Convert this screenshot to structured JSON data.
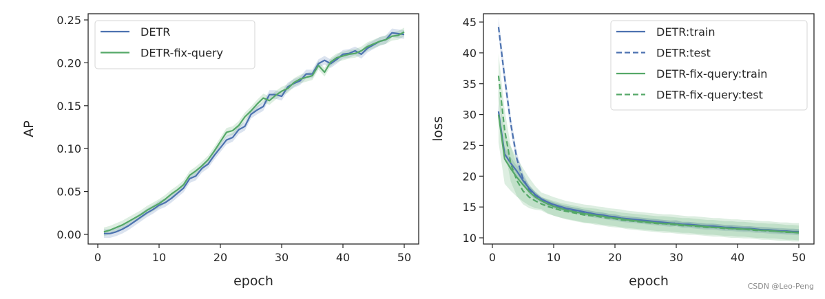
{
  "colors": {
    "detr": "#4c72b0",
    "fix": "#55a868",
    "detr_band": "#4c72b0",
    "fix_band": "#55a868"
  },
  "watermark": "CSDN @Leo-Peng",
  "chart_data": [
    {
      "type": "line",
      "title": "",
      "xlabel": "epoch",
      "ylabel": "AP",
      "xlim": [
        -1,
        52.5
      ],
      "ylim": [
        -0.01,
        0.26
      ],
      "xticks": [
        0,
        10,
        20,
        30,
        40,
        50
      ],
      "xtick_labels": [
        "0",
        "10",
        "20",
        "30",
        "40",
        "50"
      ],
      "yticks": [
        0.0,
        0.05,
        0.1,
        0.15,
        0.2,
        0.25
      ],
      "ytick_labels": [
        "0.00",
        "0.05",
        "0.10",
        "0.15",
        "0.20",
        "0.25"
      ],
      "grid": false,
      "legend_position": "upper left",
      "x": [
        1,
        2,
        3,
        4,
        5,
        6,
        7,
        8,
        9,
        10,
        11,
        12,
        13,
        14,
        15,
        16,
        17,
        18,
        19,
        20,
        21,
        22,
        23,
        24,
        25,
        26,
        27,
        28,
        29,
        30,
        31,
        32,
        33,
        34,
        35,
        36,
        37,
        38,
        39,
        40,
        41,
        42,
        43,
        44,
        45,
        46,
        47,
        48,
        49,
        50
      ],
      "series": [
        {
          "name": "DETR",
          "style": "solid",
          "color": "#4c72b0",
          "values": [
            0.001,
            0.001,
            0.003,
            0.006,
            0.01,
            0.015,
            0.02,
            0.025,
            0.029,
            0.034,
            0.037,
            0.042,
            0.048,
            0.054,
            0.065,
            0.068,
            0.077,
            0.082,
            0.092,
            0.101,
            0.11,
            0.113,
            0.122,
            0.126,
            0.14,
            0.145,
            0.149,
            0.163,
            0.163,
            0.161,
            0.172,
            0.176,
            0.179,
            0.187,
            0.187,
            0.199,
            0.203,
            0.199,
            0.204,
            0.21,
            0.211,
            0.214,
            0.21,
            0.217,
            0.221,
            0.225,
            0.227,
            0.235,
            0.234,
            0.233
          ],
          "band": 0.005
        },
        {
          "name": "DETR-fix-query",
          "style": "solid",
          "color": "#55a868",
          "values": [
            0.003,
            0.005,
            0.008,
            0.011,
            0.015,
            0.019,
            0.023,
            0.028,
            0.032,
            0.036,
            0.041,
            0.047,
            0.052,
            0.058,
            0.069,
            0.074,
            0.08,
            0.087,
            0.097,
            0.108,
            0.119,
            0.121,
            0.127,
            0.137,
            0.144,
            0.152,
            0.159,
            0.156,
            0.162,
            0.167,
            0.17,
            0.177,
            0.181,
            0.183,
            0.185,
            0.197,
            0.189,
            0.201,
            0.206,
            0.208,
            0.21,
            0.211,
            0.214,
            0.219,
            0.222,
            0.225,
            0.227,
            0.231,
            0.232,
            0.236
          ],
          "band": 0.005
        }
      ]
    },
    {
      "type": "line",
      "title": "",
      "xlabel": "epoch",
      "ylabel": "loss",
      "xlim": [
        -1.5,
        52.5
      ],
      "ylim": [
        9,
        46.5
      ],
      "xticks": [
        0,
        10,
        20,
        30,
        40,
        50
      ],
      "xtick_labels": [
        "0",
        "10",
        "20",
        "30",
        "40",
        "50"
      ],
      "yticks": [
        10,
        15,
        20,
        25,
        30,
        35,
        40,
        45
      ],
      "ytick_labels": [
        "10",
        "15",
        "20",
        "25",
        "30",
        "35",
        "40",
        "45"
      ],
      "grid": false,
      "legend_position": "upper right",
      "x": [
        1,
        2,
        3,
        4,
        5,
        6,
        7,
        8,
        9,
        10,
        11,
        12,
        13,
        14,
        15,
        16,
        17,
        18,
        19,
        20,
        21,
        22,
        23,
        24,
        25,
        26,
        27,
        28,
        29,
        30,
        31,
        32,
        33,
        34,
        35,
        36,
        37,
        38,
        39,
        40,
        41,
        42,
        43,
        44,
        45,
        46,
        47,
        48,
        49,
        50
      ],
      "series": [
        {
          "name": "DETR:train",
          "style": "solid",
          "color": "#4c72b0",
          "values": [
            30.5,
            23.6,
            22.1,
            20.8,
            19.3,
            18.0,
            17.0,
            16.3,
            15.8,
            15.4,
            15.1,
            14.8,
            14.6,
            14.4,
            14.2,
            14.0,
            13.8,
            13.7,
            13.5,
            13.4,
            13.2,
            13.1,
            13.0,
            12.9,
            12.8,
            12.7,
            12.6,
            12.5,
            12.4,
            12.3,
            12.2,
            12.2,
            12.1,
            12.0,
            11.9,
            11.9,
            11.8,
            11.7,
            11.7,
            11.6,
            11.5,
            11.5,
            11.4,
            11.3,
            11.3,
            11.2,
            11.1,
            11.1,
            11.0,
            11.0
          ],
          "band": 0.4
        },
        {
          "name": "DETR:test",
          "style": "dashed",
          "color": "#4c72b0",
          "values": [
            44.2,
            36.0,
            28.5,
            22.8,
            19.6,
            17.8,
            16.8,
            16.1,
            15.6,
            15.2,
            14.9,
            14.7,
            14.5,
            14.3,
            14.1,
            13.9,
            13.7,
            13.6,
            13.4,
            13.3,
            13.1,
            13.0,
            12.9,
            12.8,
            12.7,
            12.6,
            12.5,
            12.4,
            12.3,
            12.4,
            12.1,
            12.1,
            12.0,
            11.9,
            11.8,
            11.8,
            11.7,
            11.6,
            11.6,
            11.5,
            11.4,
            11.4,
            11.3,
            11.3,
            11.2,
            11.1,
            11.1,
            11.0,
            11.0,
            10.9
          ],
          "band": 0.5
        },
        {
          "name": "DETR-fix-query:train",
          "style": "solid",
          "color": "#55a868",
          "values": [
            30.0,
            22.8,
            21.2,
            19.8,
            18.6,
            17.5,
            16.6,
            16.0,
            15.5,
            15.1,
            14.8,
            14.5,
            14.3,
            14.1,
            13.9,
            13.8,
            13.6,
            13.5,
            13.3,
            13.2,
            13.1,
            12.9,
            12.8,
            12.7,
            12.6,
            12.5,
            12.4,
            12.3,
            12.3,
            12.2,
            12.1,
            12.0,
            12.0,
            11.9,
            11.8,
            11.7,
            11.7,
            11.6,
            11.5,
            11.5,
            11.4,
            11.4,
            11.3,
            11.2,
            11.2,
            11.1,
            11.0,
            11.0,
            10.9,
            10.9
          ],
          "band": 1.5
        },
        {
          "name": "DETR-fix-query:test",
          "style": "dashed",
          "color": "#55a868",
          "values": [
            36.3,
            27.5,
            22.0,
            19.3,
            17.6,
            16.6,
            16.0,
            15.5,
            15.1,
            14.8,
            14.5,
            14.3,
            14.1,
            13.9,
            13.7,
            13.6,
            13.5,
            13.3,
            13.2,
            13.1,
            12.9,
            12.8,
            12.7,
            12.6,
            12.5,
            12.4,
            12.3,
            12.3,
            12.2,
            12.1,
            12.0,
            12.0,
            11.9,
            11.8,
            11.7,
            11.7,
            11.6,
            11.5,
            11.5,
            11.4,
            11.4,
            11.3,
            11.2,
            11.2,
            11.1,
            11.1,
            11.0,
            10.9,
            10.9,
            10.8
          ],
          "band": 1.2
        }
      ]
    }
  ]
}
